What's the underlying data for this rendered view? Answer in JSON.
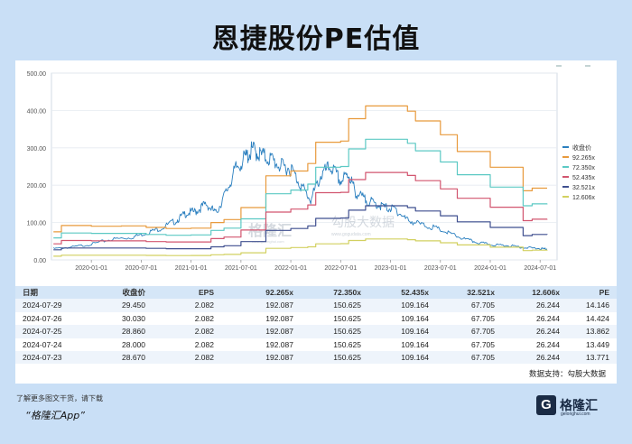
{
  "title": "恩捷股份PE估值",
  "chart_data": {
    "type": "line",
    "title": "恩捷股份PE估值",
    "xlabel": "",
    "ylabel": "",
    "ylim": [
      0,
      500
    ],
    "yticks": [
      "500.00",
      "400.00",
      "300.00",
      "200.00",
      "100.00",
      "0.00"
    ],
    "ytick_values": [
      500,
      400,
      300,
      200,
      100,
      0
    ],
    "xticks": [
      "2020-01-01",
      "2020-07-01",
      "2021-01-01",
      "2021-07-01",
      "2022-01-01",
      "2022-07-01",
      "2023-01-01",
      "2023-07-01",
      "2024-01-01",
      "2024-07-01"
    ],
    "xtick_values": [
      2020.0,
      2020.5,
      2021.0,
      2021.5,
      2022.0,
      2022.5,
      2023.0,
      2023.5,
      2024.0,
      2024.5
    ],
    "xlim": [
      2019.6,
      2024.67
    ],
    "legend_position": "right",
    "series": [
      {
        "name": "收盘价",
        "color": "#2a7fbf",
        "x": [
          2019.62,
          2019.8,
          2020.0,
          2020.2,
          2020.4,
          2020.55,
          2020.7,
          2020.85,
          2020.95,
          2021.05,
          2021.15,
          2021.25,
          2021.35,
          2021.45,
          2021.55,
          2021.62,
          2021.7,
          2021.8,
          2021.9,
          2022.0,
          2022.1,
          2022.2,
          2022.3,
          2022.4,
          2022.5,
          2022.58,
          2022.65,
          2022.75,
          2022.85,
          2022.95,
          2023.05,
          2023.15,
          2023.3,
          2023.45,
          2023.6,
          2023.75,
          2023.9,
          2024.05,
          2024.2,
          2024.35,
          2024.5,
          2024.57
        ],
        "values": [
          30,
          34,
          42,
          55,
          60,
          72,
          85,
          105,
          125,
          130,
          150,
          125,
          180,
          245,
          275,
          295,
          280,
          270,
          250,
          245,
          200,
          160,
          225,
          250,
          210,
          230,
          180,
          160,
          150,
          140,
          135,
          110,
          95,
          85,
          70,
          55,
          45,
          40,
          38,
          33,
          30,
          29.45
        ]
      },
      {
        "name": "92.265x",
        "color": "#e89a3c",
        "x": [
          2019.62,
          2019.7,
          2020.0,
          2020.3,
          2020.55,
          2020.75,
          2021.0,
          2021.2,
          2021.33,
          2021.5,
          2021.67,
          2021.75,
          2022.0,
          2022.17,
          2022.25,
          2022.5,
          2022.58,
          2022.67,
          2022.75,
          2023.0,
          2023.17,
          2023.25,
          2023.5,
          2023.58,
          2023.67,
          2024.0,
          2024.33,
          2024.42,
          2024.5,
          2024.57
        ],
        "values": [
          75,
          92,
          90,
          91,
          87,
          84,
          85,
          100,
          108,
          140,
          140,
          225,
          238,
          258,
          315,
          318,
          378,
          378,
          412,
          412,
          398,
          372,
          335,
          335,
          290,
          248,
          185,
          192,
          192,
          192.087
        ]
      },
      {
        "name": "72.350x",
        "color": "#5cc9c4",
        "x": [
          2019.62,
          2019.7,
          2020.0,
          2020.3,
          2020.55,
          2020.75,
          2021.0,
          2021.2,
          2021.33,
          2021.5,
          2021.67,
          2021.75,
          2022.0,
          2022.17,
          2022.25,
          2022.5,
          2022.58,
          2022.67,
          2022.75,
          2023.0,
          2023.17,
          2023.25,
          2023.5,
          2023.58,
          2023.67,
          2024.0,
          2024.33,
          2024.42,
          2024.5,
          2024.57
        ],
        "values": [
          59,
          72,
          71,
          71,
          68,
          66,
          67,
          79,
          85,
          110,
          110,
          177,
          187,
          203,
          248,
          250,
          297,
          297,
          323,
          323,
          312,
          292,
          262,
          262,
          228,
          195,
          145,
          150,
          150,
          150.625
        ]
      },
      {
        "name": "52.435x",
        "color": "#d2556f",
        "x": [
          2019.62,
          2019.7,
          2020.0,
          2020.3,
          2020.55,
          2020.75,
          2021.0,
          2021.2,
          2021.33,
          2021.5,
          2021.67,
          2021.75,
          2022.0,
          2022.17,
          2022.25,
          2022.5,
          2022.58,
          2022.67,
          2022.75,
          2023.0,
          2023.17,
          2023.25,
          2023.5,
          2023.58,
          2023.67,
          2024.0,
          2024.33,
          2024.42,
          2024.5,
          2024.57
        ],
        "values": [
          43,
          52,
          51,
          51,
          49,
          48,
          48,
          57,
          61,
          80,
          80,
          128,
          136,
          147,
          180,
          181,
          215,
          215,
          234,
          234,
          226,
          212,
          190,
          190,
          165,
          141,
          105,
          109,
          109,
          109.164
        ]
      },
      {
        "name": "32.521x",
        "color": "#3f4f8f",
        "x": [
          2019.62,
          2019.7,
          2020.0,
          2020.3,
          2020.55,
          2020.75,
          2021.0,
          2021.2,
          2021.33,
          2021.5,
          2021.67,
          2021.75,
          2022.0,
          2022.17,
          2022.25,
          2022.5,
          2022.58,
          2022.67,
          2022.75,
          2023.0,
          2023.17,
          2023.25,
          2023.5,
          2023.58,
          2023.67,
          2024.0,
          2024.33,
          2024.42,
          2024.5,
          2024.57
        ],
        "values": [
          27,
          32,
          32,
          32,
          31,
          30,
          30,
          35,
          38,
          49,
          49,
          79,
          84,
          91,
          111,
          112,
          133,
          133,
          145,
          145,
          140,
          131,
          118,
          118,
          102,
          87,
          65,
          68,
          68,
          67.705
        ]
      },
      {
        "name": "12.606x",
        "color": "#d2d060",
        "x": [
          2019.62,
          2019.7,
          2020.0,
          2020.3,
          2020.55,
          2020.75,
          2021.0,
          2021.2,
          2021.33,
          2021.5,
          2021.67,
          2021.75,
          2022.0,
          2022.17,
          2022.25,
          2022.5,
          2022.58,
          2022.67,
          2022.75,
          2023.0,
          2023.17,
          2023.25,
          2023.5,
          2023.58,
          2023.67,
          2024.0,
          2024.33,
          2024.42,
          2024.5,
          2024.57
        ],
        "values": [
          10,
          12.6,
          12.5,
          12.5,
          12,
          11.7,
          11.8,
          13.7,
          14.8,
          19,
          19,
          31,
          33,
          35,
          43,
          43.5,
          52,
          52,
          56,
          56,
          54,
          51,
          46,
          46,
          40,
          34,
          25,
          26,
          26,
          26.244
        ]
      }
    ]
  },
  "table": {
    "headers": [
      "日期",
      "收盘价",
      "EPS",
      "92.265x",
      "72.350x",
      "52.435x",
      "32.521x",
      "12.606x",
      "PE"
    ],
    "rows": [
      [
        "2024-07-29",
        "29.450",
        "2.082",
        "192.087",
        "150.625",
        "109.164",
        "67.705",
        "26.244",
        "14.146"
      ],
      [
        "2024-07-26",
        "30.030",
        "2.082",
        "192.087",
        "150.625",
        "109.164",
        "67.705",
        "26.244",
        "14.424"
      ],
      [
        "2024-07-25",
        "28.860",
        "2.082",
        "192.087",
        "150.625",
        "109.164",
        "67.705",
        "26.244",
        "13.862"
      ],
      [
        "2024-07-24",
        "28.000",
        "2.082",
        "192.087",
        "150.625",
        "109.164",
        "67.705",
        "26.244",
        "13.449"
      ],
      [
        "2024-07-23",
        "28.670",
        "2.082",
        "192.087",
        "150.625",
        "109.164",
        "67.705",
        "26.244",
        "13.771"
      ]
    ]
  },
  "source": "数据支持：勾股大数据",
  "footer": {
    "note": "了解更多图文干货，请下载",
    "app": "“格隆汇App”"
  },
  "logo": {
    "mark": "G",
    "text": "格隆汇",
    "sub": "gelonghui.com"
  },
  "watermark": {
    "brand": "格隆汇",
    "brand_sub": "www.gelonghui.com",
    "data": "勾股大数据",
    "data_sub": "www.gogudata.com"
  }
}
